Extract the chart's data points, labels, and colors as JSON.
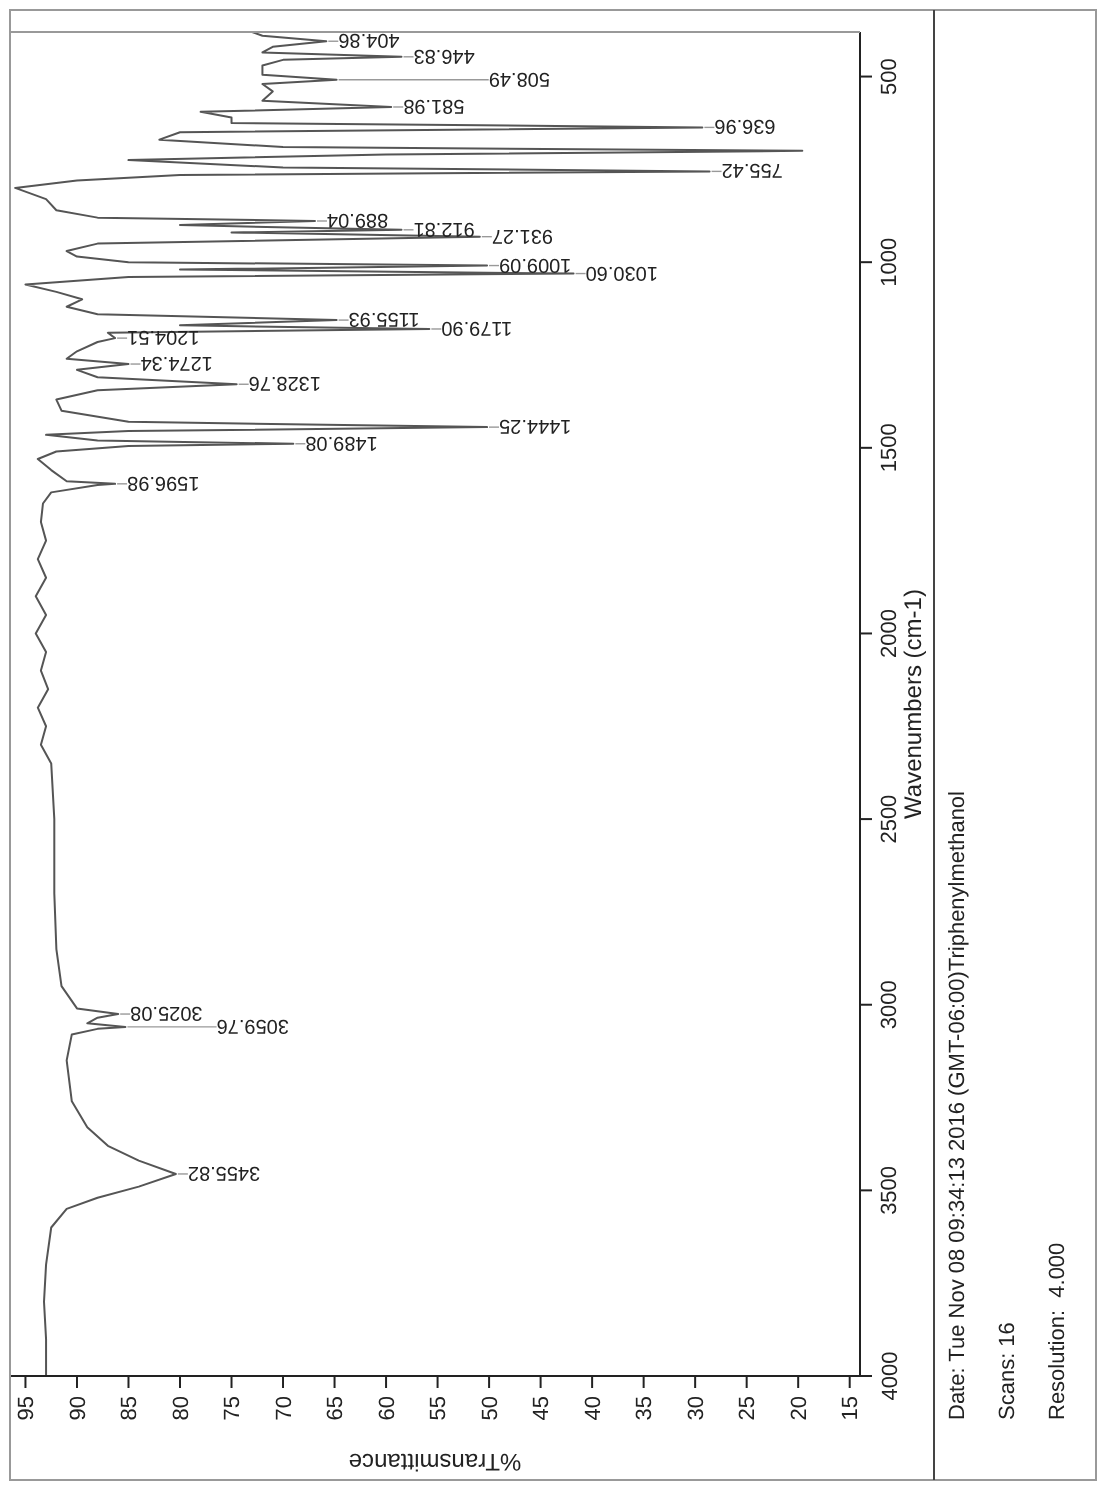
{
  "chart_data": {
    "type": "line",
    "xlabel": "%Transmittance",
    "ylabel": "Wavenumbers (cm-1)",
    "marker": "none",
    "xlim": [
      96.5,
      14
    ],
    "ylim": [
      4000,
      380
    ],
    "xticks": [
      95,
      90,
      85,
      80,
      75,
      70,
      65,
      60,
      55,
      50,
      45,
      40,
      35,
      30,
      25,
      20,
      15
    ],
    "yticks": [
      4000,
      3500,
      3000,
      2500,
      2000,
      1500,
      1000,
      500
    ],
    "series": [
      {
        "color": "#555555",
        "values": [
          4000,
          3900,
          3800,
          3700,
          3600,
          3550,
          3520,
          3490,
          3455.82,
          3420,
          3380,
          3330,
          3260,
          3150,
          3080,
          3065,
          3059.76,
          3050,
          3035,
          3025.08,
          3010,
          2950,
          2850,
          2700,
          2500,
          2350,
          2300,
          2250,
          2200,
          2150,
          2100,
          2050,
          2000,
          1950,
          1900,
          1850,
          1800,
          1750,
          1700,
          1650,
          1620,
          1600,
          1596.98,
          1590,
          1560,
          1530,
          1510,
          1495,
          1489.08,
          1480,
          1465,
          1455,
          1444.25,
          1430,
          1400,
          1370,
          1345,
          1328.76,
          1310,
          1290,
          1274.34,
          1260,
          1240,
          1215,
          1204.51,
          1190,
          1179.9,
          1170,
          1155.93,
          1140,
          1120,
          1100,
          1080,
          1060,
          1040,
          1030.6,
          1020,
          1009.09,
          1000,
          985,
          970,
          950,
          931.27,
          920,
          912.81,
          900,
          889.04,
          880,
          860,
          830,
          800,
          780,
          765,
          755.42,
          745,
          725,
          710,
          700,
          690,
          670,
          650,
          636.96,
          625,
          610,
          595,
          581.98,
          565,
          540,
          520,
          508.49,
          495,
          470,
          455,
          446.83,
          435,
          420,
          404.86,
          390,
          380
        ],
        "x": [
          93,
          93,
          93.2,
          93,
          92.5,
          91,
          88,
          84,
          80.4,
          84,
          87,
          89,
          90.5,
          91,
          90.5,
          88,
          85.3,
          89,
          88,
          86,
          90,
          91.5,
          92,
          92.2,
          92.2,
          92.5,
          93.5,
          93,
          93.8,
          92.8,
          93.5,
          93,
          94,
          93,
          94,
          93,
          93.8,
          93,
          93.5,
          93.3,
          92.5,
          88,
          86.3,
          91,
          92.5,
          93.8,
          92,
          85,
          69,
          88,
          93,
          85,
          50.2,
          85,
          91.5,
          92,
          88,
          74.5,
          88,
          90,
          85,
          91,
          90,
          88,
          86.3,
          87,
          55.8,
          80,
          64.8,
          88,
          91,
          89.5,
          92,
          95,
          85,
          41.8,
          80,
          50.2,
          85,
          90,
          91,
          88,
          50.9,
          75,
          58.5,
          80,
          66.9,
          88,
          92,
          93,
          96,
          90,
          80,
          28.6,
          70,
          85,
          60,
          19.6,
          70,
          82,
          80,
          29.3,
          75,
          75,
          78,
          59.5,
          72,
          71,
          72,
          64.8,
          72,
          72,
          70,
          58.5,
          72,
          71,
          65.8,
          72,
          73
        ]
      }
    ],
    "annotations": [
      {
        "text": "3455.82",
        "y": 3455.82,
        "x": 80.4
      },
      {
        "text": "3059.76",
        "y": 3059.76,
        "x": 85.3
      },
      {
        "text": "3025.08",
        "y": 3025.08,
        "x": 86
      },
      {
        "text": "1596.98",
        "y": 1596.98,
        "x": 86.3
      },
      {
        "text": "1489.08",
        "y": 1489.08,
        "x": 69
      },
      {
        "text": "1444.25",
        "y": 1444.25,
        "x": 50.2
      },
      {
        "text": "1328.76",
        "y": 1328.76,
        "x": 74.5
      },
      {
        "text": "1274.34",
        "y": 1274.34,
        "x": 85
      },
      {
        "text": "1204.51",
        "y": 1204.51,
        "x": 86.3
      },
      {
        "text": "1179.90",
        "y": 1179.9,
        "x": 55.8
      },
      {
        "text": "1155.93",
        "y": 1155.93,
        "x": 64.8
      },
      {
        "text": "1030.60",
        "y": 1030.6,
        "x": 41.8
      },
      {
        "text": "1009.09",
        "y": 1009.09,
        "x": 50.2
      },
      {
        "text": "931.27",
        "y": 931.27,
        "x": 50.9
      },
      {
        "text": "912.81",
        "y": 912.81,
        "x": 58.5
      },
      {
        "text": "889.04",
        "y": 889.04,
        "x": 66.9
      },
      {
        "text": "755.42",
        "y": 755.42,
        "x": 28.6
      },
      {
        "text": "636.96",
        "y": 636.96,
        "x": 29.3
      },
      {
        "text": "581.98",
        "y": 581.98,
        "x": 59.5
      },
      {
        "text": "508.49",
        "y": 508.49,
        "x": 64.8
      },
      {
        "text": "446.83",
        "y": 446.83,
        "x": 58.5
      },
      {
        "text": "404.86",
        "y": 404.86,
        "x": 65.8
      },
      "Date: Tue Nov 08 09:34:13 2016 (GMT-06:00)Triphenylmethanol",
      "Scans: 16",
      "Resolution:  4.000"
    ]
  }
}
